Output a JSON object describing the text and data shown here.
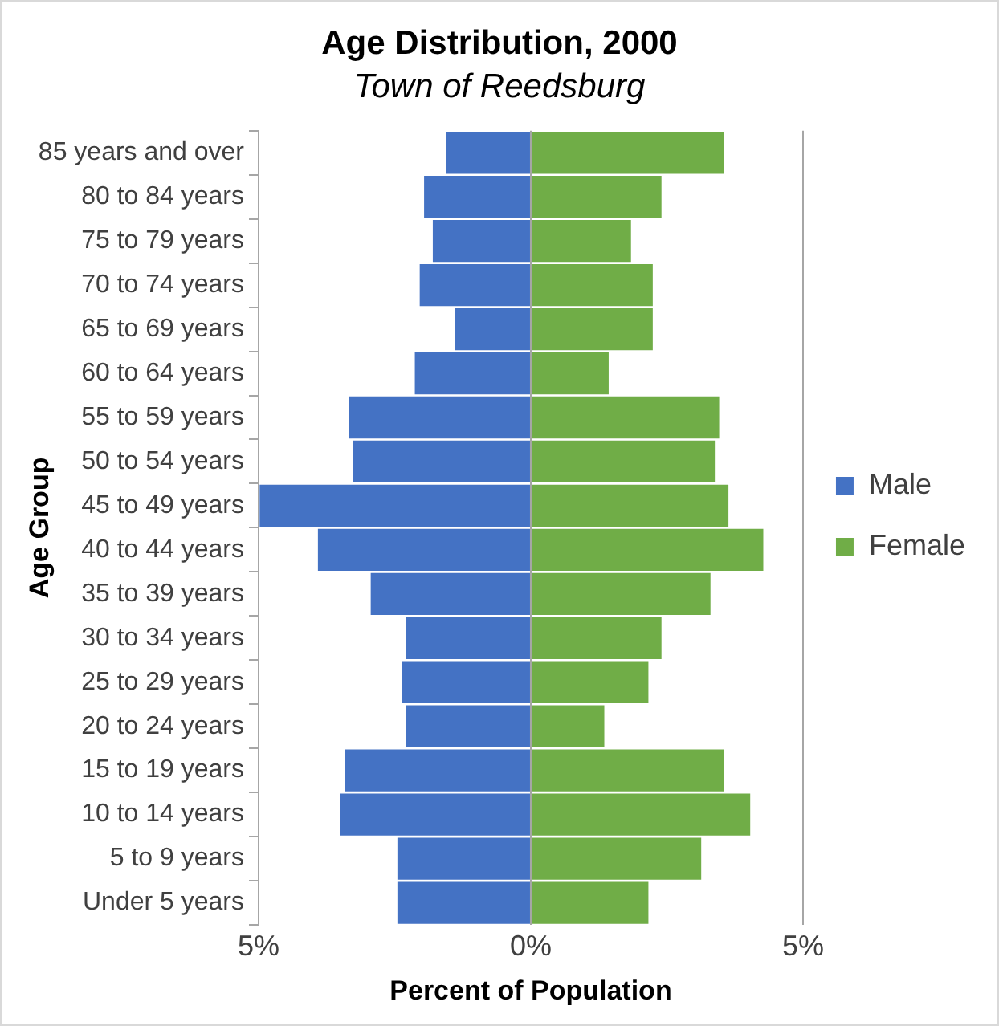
{
  "chart_data": {
    "type": "bar",
    "orientation": "horizontal",
    "stacked": true,
    "title": "Age Distribution, 2000",
    "subtitle": "Town of Reedsburg",
    "xlabel": "Percent of Population",
    "ylabel": "Age Group",
    "categories": [
      "85 years and over",
      "80 to 84 years",
      "75 to 79 years",
      "70 to 74 years",
      "65 to 69 years",
      "60 to 64 years",
      "55 to 59 years",
      "50 to 54 years",
      "45 to 49 years",
      "40 to 44 years",
      "35 to 39 years",
      "30 to 34 years",
      "25 to 29 years",
      "20 to 24 years",
      "15 to 19 years",
      "10 to 14 years",
      "5 to 9 years",
      "Under 5 years"
    ],
    "series": [
      {
        "name": "Male",
        "color": "#4472c4",
        "values": [
          -1.58,
          -1.98,
          -1.82,
          -2.06,
          -1.42,
          -2.15,
          -3.36,
          -3.28,
          -5.0,
          -3.93,
          -2.96,
          -2.31,
          -2.39,
          -2.31,
          -3.44,
          -3.53,
          -2.47,
          -2.47
        ]
      },
      {
        "name": "Female",
        "color": "#70ad47",
        "values": [
          3.57,
          2.42,
          1.86,
          2.26,
          2.26,
          1.45,
          3.48,
          3.4,
          3.65,
          4.29,
          3.32,
          2.42,
          2.18,
          1.37,
          3.57,
          4.05,
          3.15,
          2.18
        ]
      }
    ],
    "xlim": [
      -5,
      5
    ],
    "xticks": [
      {
        "value": -5,
        "label": "5%"
      },
      {
        "value": 0,
        "label": "0%"
      },
      {
        "value": 5,
        "label": "5%"
      }
    ],
    "grid": "x",
    "legend": "right"
  }
}
